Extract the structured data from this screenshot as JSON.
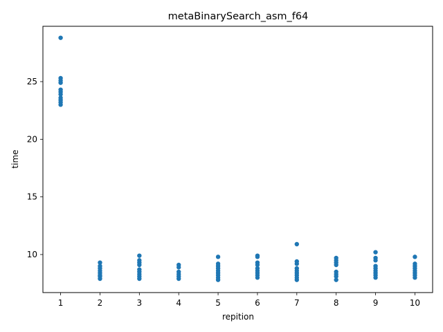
{
  "chart_data": {
    "type": "scatter",
    "title": "metaBinarySearch_asm_f64",
    "xlabel": "repition",
    "ylabel": "time",
    "xlim": [
      0.55,
      10.45
    ],
    "ylim": [
      6.7,
      29.8
    ],
    "grid": false,
    "x_ticks": [
      1,
      2,
      3,
      4,
      5,
      6,
      7,
      8,
      9,
      10
    ],
    "y_ticks": [
      10,
      15,
      20,
      25
    ],
    "color": "#1f77b4",
    "series": [
      {
        "points": [
          [
            1,
            28.8
          ],
          [
            1,
            25.3
          ],
          [
            1,
            25.1
          ],
          [
            1,
            24.9
          ],
          [
            1,
            24.3
          ],
          [
            1,
            24.1
          ],
          [
            1,
            23.9
          ],
          [
            1,
            23.6
          ],
          [
            1,
            23.4
          ],
          [
            1,
            23.2
          ],
          [
            1,
            23.0
          ],
          [
            2,
            9.3
          ],
          [
            2,
            9.0
          ],
          [
            2,
            8.8
          ],
          [
            2,
            8.6
          ],
          [
            2,
            8.4
          ],
          [
            2,
            8.2
          ],
          [
            2,
            8.1
          ],
          [
            2,
            7.9
          ],
          [
            3,
            9.9
          ],
          [
            3,
            9.5
          ],
          [
            3,
            9.3
          ],
          [
            3,
            9.1
          ],
          [
            3,
            8.7
          ],
          [
            3,
            8.5
          ],
          [
            3,
            8.3
          ],
          [
            3,
            8.1
          ],
          [
            3,
            7.9
          ],
          [
            4,
            9.1
          ],
          [
            4,
            8.9
          ],
          [
            4,
            8.5
          ],
          [
            4,
            8.3
          ],
          [
            4,
            8.1
          ],
          [
            4,
            7.9
          ],
          [
            5,
            9.8
          ],
          [
            5,
            9.2
          ],
          [
            5,
            9.0
          ],
          [
            5,
            8.8
          ],
          [
            5,
            8.6
          ],
          [
            5,
            8.4
          ],
          [
            5,
            8.2
          ],
          [
            5,
            8.0
          ],
          [
            5,
            7.8
          ],
          [
            6,
            9.9
          ],
          [
            6,
            9.8
          ],
          [
            6,
            9.3
          ],
          [
            6,
            9.1
          ],
          [
            6,
            8.8
          ],
          [
            6,
            8.6
          ],
          [
            6,
            8.4
          ],
          [
            6,
            8.2
          ],
          [
            6,
            8.0
          ],
          [
            7,
            10.9
          ],
          [
            7,
            9.4
          ],
          [
            7,
            9.2
          ],
          [
            7,
            8.8
          ],
          [
            7,
            8.6
          ],
          [
            7,
            8.4
          ],
          [
            7,
            8.2
          ],
          [
            7,
            8.0
          ],
          [
            7,
            7.8
          ],
          [
            8,
            9.7
          ],
          [
            8,
            9.5
          ],
          [
            8,
            9.3
          ],
          [
            8,
            9.1
          ],
          [
            8,
            8.5
          ],
          [
            8,
            8.3
          ],
          [
            8,
            8.1
          ],
          [
            8,
            7.8
          ],
          [
            9,
            10.2
          ],
          [
            9,
            9.7
          ],
          [
            9,
            9.5
          ],
          [
            9,
            9.0
          ],
          [
            9,
            8.8
          ],
          [
            9,
            8.6
          ],
          [
            9,
            8.4
          ],
          [
            9,
            8.2
          ],
          [
            9,
            8.0
          ],
          [
            10,
            9.8
          ],
          [
            10,
            9.2
          ],
          [
            10,
            9.0
          ],
          [
            10,
            8.8
          ],
          [
            10,
            8.6
          ],
          [
            10,
            8.4
          ],
          [
            10,
            8.2
          ],
          [
            10,
            8.0
          ]
        ]
      }
    ]
  }
}
